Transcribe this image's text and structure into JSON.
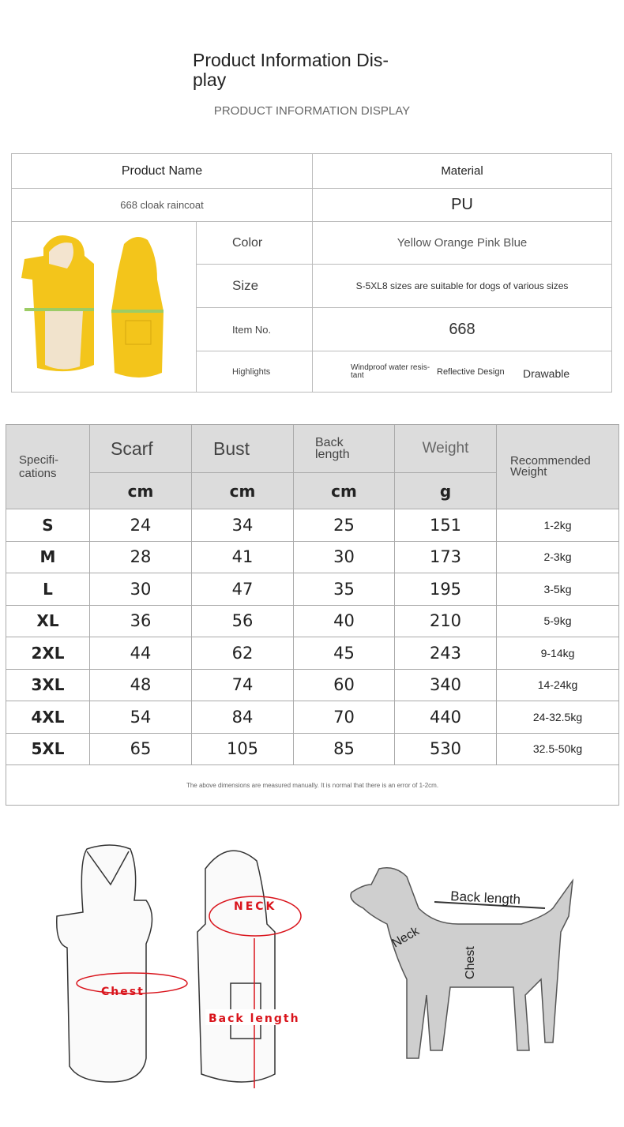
{
  "header": {
    "title": "Product Information Dis-\nplay",
    "subtitle": "PRODUCT INFORMATION DISPLAY"
  },
  "info": {
    "product_name_label": "Product Name",
    "material_label": "Material",
    "product_name": "668 cloak raincoat",
    "material": "PU",
    "color_label": "Color",
    "color": "Yellow Orange Pink Blue",
    "size_label": "Size",
    "size": "S-5XL8 sizes are suitable for dogs of various sizes",
    "item_label": "Item No.",
    "item": "668",
    "highlights_label": "Highlights",
    "highlights": [
      "Windproof water resis-\ntant",
      "Reflective Design",
      "Drawable"
    ],
    "product_color": "#f3c51b"
  },
  "size_table": {
    "headers": {
      "spec": "Specifi-\ncations",
      "scarf": "Scarf",
      "bust": "Bust",
      "back": "Back\nlength",
      "weight": "Weight",
      "recommended": "Recommended\nWeight"
    },
    "units": [
      "cm",
      "cm",
      "cm",
      "g"
    ],
    "rows": [
      {
        "size": "S",
        "scarf": "24",
        "bust": "34",
        "back": "25",
        "weight": "151",
        "rec": "1-2kg"
      },
      {
        "size": "M",
        "scarf": "28",
        "bust": "41",
        "back": "30",
        "weight": "173",
        "rec": "2-3kg"
      },
      {
        "size": "L",
        "scarf": "30",
        "bust": "47",
        "back": "35",
        "weight": "195",
        "rec": "3-5kg"
      },
      {
        "size": "XL",
        "scarf": "36",
        "bust": "56",
        "back": "40",
        "weight": "210",
        "rec": "5-9kg"
      },
      {
        "size": "2XL",
        "scarf": "44",
        "bust": "62",
        "back": "45",
        "weight": "243",
        "rec": "9-14kg"
      },
      {
        "size": "3XL",
        "scarf": "48",
        "bust": "74",
        "back": "60",
        "weight": "340",
        "rec": "14-24kg"
      },
      {
        "size": "4XL",
        "scarf": "54",
        "bust": "84",
        "back": "70",
        "weight": "440",
        "rec": "24-32.5kg"
      },
      {
        "size": "5XL",
        "scarf": "65",
        "bust": "105",
        "back": "85",
        "weight": "530",
        "rec": "32.5-50kg"
      }
    ],
    "note": "The above dimensions are measured manually. It is normal that there is an error of 1-2cm."
  },
  "diagram": {
    "neck": "NECK",
    "chest": "Chest",
    "back_length": "Back length",
    "dog_back_length": "Back length",
    "dog_neck": "Neck",
    "dog_chest": "Chest",
    "accent": "#d9141c"
  }
}
